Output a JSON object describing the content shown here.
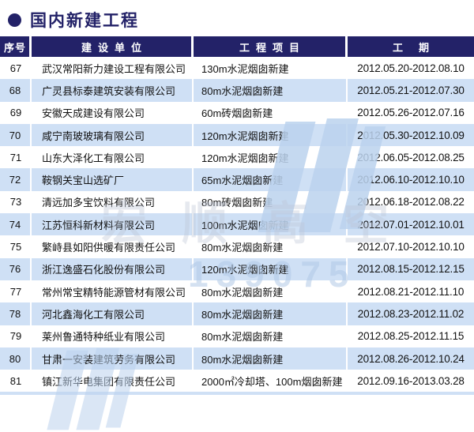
{
  "page_title": "国内新建工程",
  "table": {
    "headers": [
      "序号",
      "建设单位",
      "工程项目",
      "工期"
    ],
    "rows": [
      {
        "no": "67",
        "company": "武汉常阳新力建设工程有限公司",
        "project": "130m水泥烟囱新建",
        "period": "2012.05.20-2012.08.10"
      },
      {
        "no": "68",
        "company": "广灵县标泰建筑安装有限公司",
        "project": "80m水泥烟囱新建",
        "period": "2012.05.21-2012.07.30"
      },
      {
        "no": "69",
        "company": "安徽天成建设有限公司",
        "project": "60m砖烟囱新建",
        "period": "2012.05.26-2012.07.16"
      },
      {
        "no": "70",
        "company": "咸宁南玻玻璃有限公司",
        "project": "120m水泥烟囱新建",
        "period": "2012.05.30-2012.10.09"
      },
      {
        "no": "71",
        "company": "山东大泽化工有限公司",
        "project": "120m水泥烟囱新建",
        "period": "2012.06.05-2012.08.25"
      },
      {
        "no": "72",
        "company": "鞍钢关宝山选矿厂",
        "project": "65m水泥烟囱新建",
        "period": "2012.06.10-2012.10.10"
      },
      {
        "no": "73",
        "company": "清远加多宝饮料有限公司",
        "project": "80m砖烟囱新建",
        "period": "2012.06.18-2012.08.22"
      },
      {
        "no": "74",
        "company": "江苏恒科新材料有限公司",
        "project": "100m水泥烟囱新建",
        "period": "2012.07.01-2012.10.01"
      },
      {
        "no": "75",
        "company": "繁峙县如阳供暖有限责任公司",
        "project": "80m水泥烟囱新建",
        "period": "2012.07.10-2012.10.10"
      },
      {
        "no": "76",
        "company": "浙江逸盛石化股份有限公司",
        "project": "120m水泥烟囱新建",
        "period": "2012.08.15-2012.12.15"
      },
      {
        "no": "77",
        "company": "常州常宝精特能源管材有限公司",
        "project": "80m水泥烟囱新建",
        "period": "2012.08.21-2012.11.10"
      },
      {
        "no": "78",
        "company": "河北鑫海化工有限公司",
        "project": "80m水泥烟囱新建",
        "period": "2012.08.23-2012.11.02"
      },
      {
        "no": "79",
        "company": "莱州鲁通特种纸业有限公司",
        "project": "80m水泥烟囱新建",
        "period": "2012.08.25-2012.11.15"
      },
      {
        "no": "80",
        "company": "甘肃一安装建筑劳务有限公司",
        "project": "80m水泥烟囱新建",
        "period": "2012.08.26-2012.10.24"
      },
      {
        "no": "81",
        "company": "镇江新华电集团有限责任公司",
        "project": "2000㎡冷却塔、100m烟囱新建",
        "period": "2012.09.16-2013.03.28"
      }
    ]
  },
  "watermark": {
    "logo_text": "宏顺高空",
    "phone_fragment": "139075"
  },
  "colors": {
    "header_navy": "#232268",
    "alt_row_blue": "#cfe0f5",
    "watermark_blue": "#bcd3ee"
  }
}
